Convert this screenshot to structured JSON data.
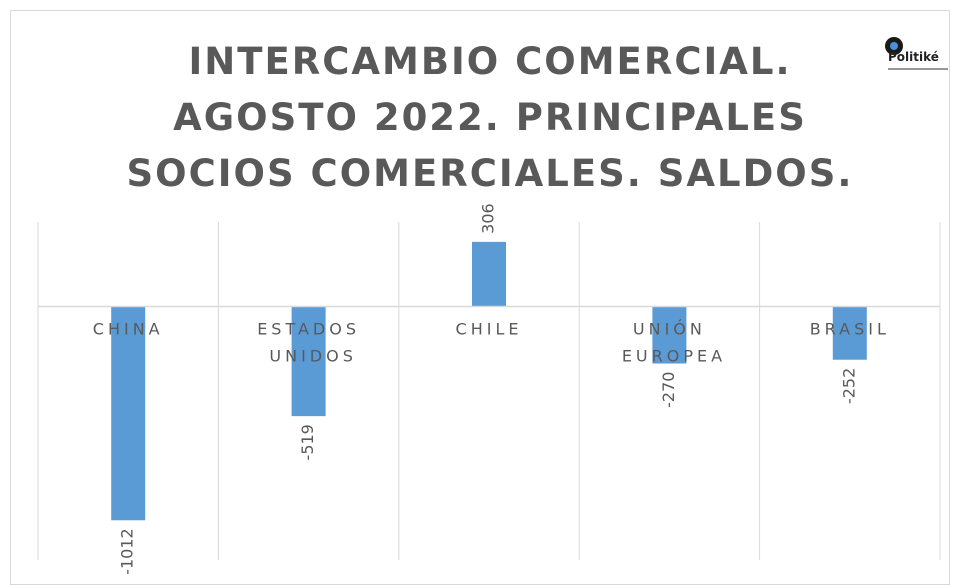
{
  "chart_data": {
    "type": "bar",
    "title": "INTERCAMBIO COMERCIAL. AGOSTO 2022. PRINCIPALES SOCIOS COMERCIALES. SALDOS.",
    "logo": "Politiké",
    "categories": [
      "CHINA",
      "ESTADOS UNIDOS",
      "CHILE",
      "UNIÓN EUROPEA",
      "BRASIL"
    ],
    "values": [
      -1012,
      -519,
      306,
      -270,
      -252
    ],
    "color": "#5b9bd5",
    "ylim": [
      -1200,
      400
    ],
    "grid": true
  }
}
